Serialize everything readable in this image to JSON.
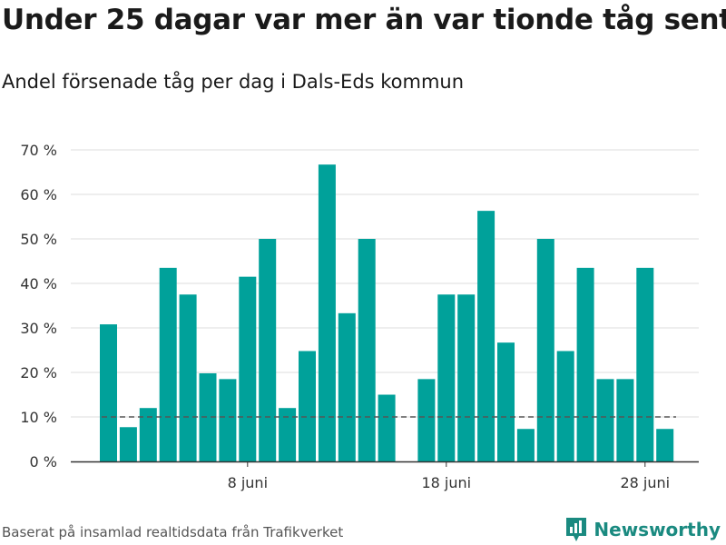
{
  "title": "Under 25 dagar var mer än var tionde tåg sent",
  "subtitle": "Andel försenade tåg per dag i Dals-Eds kommun",
  "source": "Baserat på insamlad realtidsdata från Trafikverket",
  "brand": {
    "name": "Newsworthy",
    "icon": "bar-chart-pin-icon",
    "color": "#1a8a80"
  },
  "colors": {
    "bar": "#00a19a",
    "reference": "#555555",
    "grid": "#dddddd"
  },
  "chart_data": {
    "type": "bar",
    "ylim": [
      0,
      70
    ],
    "y_ticks": [
      0,
      10,
      20,
      30,
      40,
      50,
      60,
      70
    ],
    "y_tick_labels": [
      "0 %",
      "10 %",
      "20 %",
      "30 %",
      "40 %",
      "50 %",
      "60 %",
      "70 %"
    ],
    "x_tick_labels": [
      {
        "label": "8 juni",
        "day": 8
      },
      {
        "label": "18 juni",
        "day": 18
      },
      {
        "label": "28 juni",
        "day": 28
      }
    ],
    "x_start_day": 1,
    "x_end_day": 30,
    "bars": [
      {
        "day": 1,
        "value": 30.8
      },
      {
        "day": 2,
        "value": 7.7
      },
      {
        "day": 3,
        "value": 12.0
      },
      {
        "day": 4,
        "value": 43.5
      },
      {
        "day": 5,
        "value": 37.5
      },
      {
        "day": 6,
        "value": 19.8
      },
      {
        "day": 7,
        "value": 18.5
      },
      {
        "day": 8,
        "value": 41.5
      },
      {
        "day": 9,
        "value": 50.0
      },
      {
        "day": 10,
        "value": 12.0
      },
      {
        "day": 11,
        "value": 24.8
      },
      {
        "day": 12,
        "value": 66.7
      },
      {
        "day": 13,
        "value": 33.3
      },
      {
        "day": 14,
        "value": 50.0
      },
      {
        "day": 15,
        "value": 15.0
      },
      {
        "day": 17,
        "value": 18.5
      },
      {
        "day": 18,
        "value": 37.5
      },
      {
        "day": 19,
        "value": 37.5
      },
      {
        "day": 20,
        "value": 56.3
      },
      {
        "day": 21,
        "value": 26.7
      },
      {
        "day": 22,
        "value": 7.3
      },
      {
        "day": 23,
        "value": 50.0
      },
      {
        "day": 24,
        "value": 24.8
      },
      {
        "day": 25,
        "value": 43.5
      },
      {
        "day": 26,
        "value": 18.5
      },
      {
        "day": 27,
        "value": 18.5
      },
      {
        "day": 28,
        "value": 43.5
      },
      {
        "day": 29,
        "value": 7.3
      }
    ],
    "reference_line": 10,
    "grid": true,
    "legend": "none"
  }
}
